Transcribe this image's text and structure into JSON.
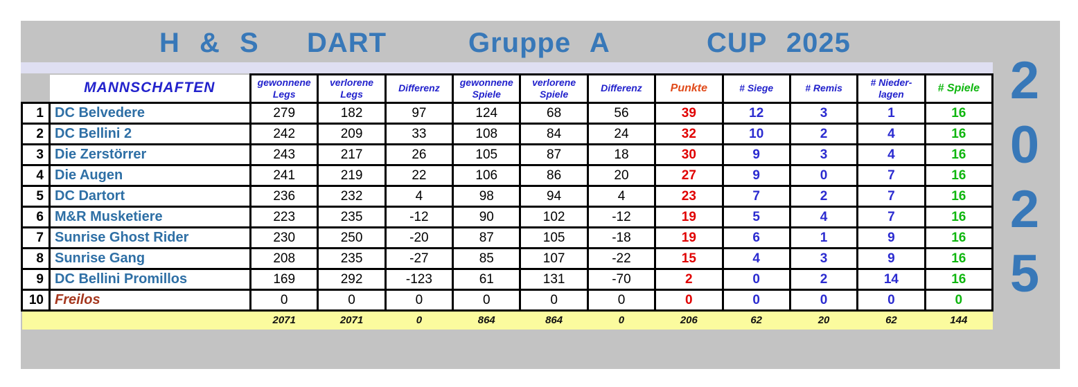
{
  "title": {
    "segments": [
      "H & S",
      "DART",
      "Gruppe A",
      "CUP 2025"
    ]
  },
  "year_vertical": [
    "2",
    "0",
    "2",
    "5"
  ],
  "colors": {
    "panel_gray": "#c3c3c3",
    "accent_strip_lavender": "#dfdff2",
    "title_blue": "#3878b8",
    "header_label_blue": "#2222cc",
    "punkte_header_orange": "#e04a1a",
    "punkte_value_red": "#e00000",
    "count_value_blue": "#2b2bd0",
    "spiele_green": "#0fb60f",
    "team_name_blue": "#2e6fa5",
    "freilos_brown": "#a5371e",
    "totals_yellow": "#fbfb9e"
  },
  "table": {
    "team_header": "MANNSCHAFTEN",
    "columns": [
      "gewonnene\nLegs",
      "verlorene\nLegs",
      "Differenz",
      "gewonnene\nSpiele",
      "verlorene\nSpiele",
      "Differenz",
      "Punkte",
      "# Siege",
      "# Remis",
      "# Nieder-\nlagen",
      "# Spiele"
    ],
    "rows": [
      {
        "rank": "1",
        "team": "DC Belvedere",
        "freilos": false,
        "values": [
          "279",
          "182",
          "97",
          "124",
          "68",
          "56",
          "39",
          "12",
          "3",
          "1",
          "16"
        ]
      },
      {
        "rank": "2",
        "team": "DC Bellini 2",
        "freilos": false,
        "values": [
          "242",
          "209",
          "33",
          "108",
          "84",
          "24",
          "32",
          "10",
          "2",
          "4",
          "16"
        ]
      },
      {
        "rank": "3",
        "team": "Die Zerstörrer",
        "freilos": false,
        "values": [
          "243",
          "217",
          "26",
          "105",
          "87",
          "18",
          "30",
          "9",
          "3",
          "4",
          "16"
        ]
      },
      {
        "rank": "4",
        "team": "Die Augen",
        "freilos": false,
        "values": [
          "241",
          "219",
          "22",
          "106",
          "86",
          "20",
          "27",
          "9",
          "0",
          "7",
          "16"
        ]
      },
      {
        "rank": "5",
        "team": "DC Dartort",
        "freilos": false,
        "values": [
          "236",
          "232",
          "4",
          "98",
          "94",
          "4",
          "23",
          "7",
          "2",
          "7",
          "16"
        ]
      },
      {
        "rank": "6",
        "team": "M&R Musketiere",
        "freilos": false,
        "values": [
          "223",
          "235",
          "-12",
          "90",
          "102",
          "-12",
          "19",
          "5",
          "4",
          "7",
          "16"
        ]
      },
      {
        "rank": "7",
        "team": "Sunrise Ghost Rider",
        "freilos": false,
        "values": [
          "230",
          "250",
          "-20",
          "87",
          "105",
          "-18",
          "19",
          "6",
          "1",
          "9",
          "16"
        ]
      },
      {
        "rank": "8",
        "team": "Sunrise Gang",
        "freilos": false,
        "values": [
          "208",
          "235",
          "-27",
          "85",
          "107",
          "-22",
          "15",
          "4",
          "3",
          "9",
          "16"
        ]
      },
      {
        "rank": "9",
        "team": "DC Bellini Promillos",
        "freilos": false,
        "values": [
          "169",
          "292",
          "-123",
          "61",
          "131",
          "-70",
          "2",
          "0",
          "2",
          "14",
          "16"
        ]
      },
      {
        "rank": "10",
        "team": "Freilos",
        "freilos": true,
        "values": [
          "0",
          "0",
          "0",
          "0",
          "0",
          "0",
          "0",
          "0",
          "0",
          "0",
          "0"
        ]
      }
    ],
    "totals": [
      "2071",
      "2071",
      "0",
      "864",
      "864",
      "0",
      "206",
      "62",
      "20",
      "62",
      "144"
    ]
  }
}
